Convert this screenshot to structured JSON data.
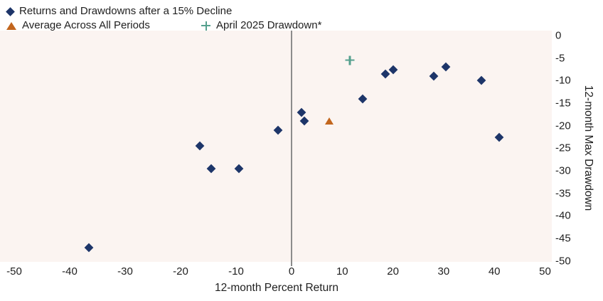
{
  "legend": [
    {
      "label": "Returns and Drawdowns after a 15% Decline",
      "marker": "diamond",
      "color": "#1d3569"
    },
    {
      "label": "Average Across All Periods",
      "marker": "triangle",
      "color": "#c2661e"
    },
    {
      "label": "April 2025 Drawdown*",
      "marker": "plus",
      "color": "#55a08e"
    }
  ],
  "chart_data": {
    "type": "scatter",
    "title": "Returns and Drawdowns after a 15% Decline",
    "xlabel": "12-month Percent Return",
    "ylabel": "12-month Max Drawdown",
    "xlim": [
      -50,
      50
    ],
    "ylim": [
      -50,
      0
    ],
    "x_ticks": [
      -50,
      -40,
      -30,
      -20,
      -10,
      0,
      10,
      20,
      30,
      40,
      50
    ],
    "y_ticks": [
      0,
      -5,
      -10,
      -15,
      -20,
      -25,
      -30,
      -35,
      -40,
      -45,
      -50
    ],
    "grid": false,
    "legend_position": "top-left",
    "plot_bg": "#fbf4f1",
    "zero_line_color": "#8c8c8c",
    "series": [
      {
        "name": "Returns and Drawdowns after a 15% Decline",
        "marker": "diamond",
        "color": "#1d3569",
        "points": [
          [
            -36.5,
            -47
          ],
          [
            -16.5,
            -24.5
          ],
          [
            -14.5,
            -29.5
          ],
          [
            -9.5,
            -29.5
          ],
          [
            -2.5,
            -21
          ],
          [
            2,
            -17
          ],
          [
            2.5,
            -19
          ],
          [
            14,
            -14
          ],
          [
            18.5,
            -8.5
          ],
          [
            20,
            -7.5
          ],
          [
            28,
            -9
          ],
          [
            30.5,
            -7
          ],
          [
            37.5,
            -10
          ],
          [
            41,
            -22.5
          ]
        ]
      },
      {
        "name": "Average Across All Periods",
        "marker": "triangle",
        "color": "#c2661e",
        "points": [
          [
            7.5,
            -19
          ]
        ]
      },
      {
        "name": "April 2025 Drawdown*",
        "marker": "plus",
        "color": "#55a08e",
        "points": [
          [
            11.5,
            -5.5
          ]
        ]
      }
    ]
  }
}
